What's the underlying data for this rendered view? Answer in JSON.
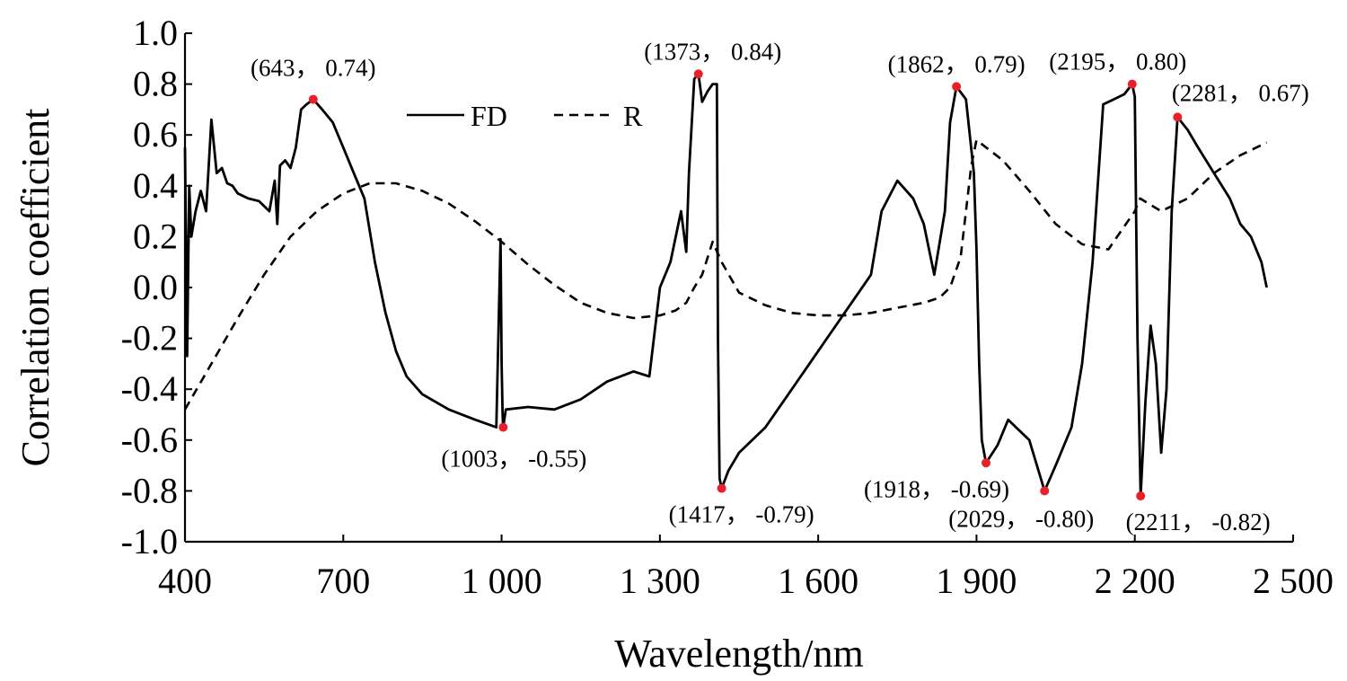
{
  "chart_data": {
    "type": "line",
    "xlabel": "Wavelength/nm",
    "ylabel": "Correlation coefficient",
    "xlim": [
      400,
      2500
    ],
    "ylim": [
      -1.0,
      1.0
    ],
    "x_ticks": [
      400,
      700,
      1000,
      1300,
      1600,
      1900,
      2200,
      2500
    ],
    "x_tick_labels": [
      "400",
      "700",
      "1 000",
      "1 300",
      "1 600",
      "1 900",
      "2 200",
      "2 500"
    ],
    "y_ticks": [
      1.0,
      0.8,
      0.6,
      0.4,
      0.2,
      0.0,
      -0.2,
      -0.4,
      -0.6,
      -0.8,
      -1.0
    ],
    "y_tick_labels": [
      "1.0",
      "0.8",
      "0.6",
      "0.4",
      "0.2",
      "0.0",
      "-0.2",
      "-0.4",
      "-0.6",
      "-0.8",
      "-1.0"
    ],
    "grid": false,
    "legend_position": "top-center",
    "series": [
      {
        "name": "FD",
        "style": "solid",
        "color": "#000000",
        "x": [
          400,
          404,
          408,
          412,
          420,
          430,
          440,
          450,
          460,
          470,
          480,
          490,
          500,
          520,
          540,
          560,
          570,
          575,
          580,
          590,
          600,
          610,
          620,
          630,
          643,
          660,
          680,
          700,
          720,
          740,
          760,
          780,
          800,
          820,
          850,
          900,
          950,
          990,
          998,
          1000,
          1002,
          1003,
          1008,
          1050,
          1100,
          1150,
          1200,
          1250,
          1280,
          1300,
          1320,
          1340,
          1350,
          1355,
          1365,
          1373,
          1380,
          1390,
          1400,
          1408,
          1410,
          1413,
          1417,
          1430,
          1450,
          1500,
          1550,
          1600,
          1650,
          1700,
          1720,
          1750,
          1780,
          1800,
          1820,
          1840,
          1850,
          1862,
          1880,
          1895,
          1900,
          1905,
          1910,
          1918,
          1940,
          1960,
          2000,
          2029,
          2050,
          2080,
          2100,
          2120,
          2140,
          2160,
          2180,
          2195,
          2200,
          2205,
          2211,
          2220,
          2230,
          2240,
          2250,
          2260,
          2270,
          2281,
          2300,
          2320,
          2350,
          2380,
          2400,
          2420,
          2440,
          2450
        ],
        "values": [
          0.55,
          -0.27,
          0.4,
          0.2,
          0.3,
          0.38,
          0.3,
          0.66,
          0.45,
          0.47,
          0.41,
          0.4,
          0.37,
          0.35,
          0.34,
          0.3,
          0.42,
          0.25,
          0.48,
          0.5,
          0.47,
          0.55,
          0.7,
          0.72,
          0.74,
          0.7,
          0.65,
          0.55,
          0.45,
          0.35,
          0.1,
          -0.1,
          -0.25,
          -0.35,
          -0.42,
          -0.48,
          -0.52,
          -0.55,
          0.19,
          -0.3,
          -0.5,
          -0.55,
          -0.48,
          -0.47,
          -0.48,
          -0.44,
          -0.37,
          -0.33,
          -0.35,
          0.0,
          0.1,
          0.3,
          0.14,
          0.45,
          0.82,
          0.84,
          0.73,
          0.77,
          0.8,
          0.8,
          -0.2,
          -0.75,
          -0.79,
          -0.72,
          -0.65,
          -0.55,
          -0.4,
          -0.25,
          -0.1,
          0.05,
          0.3,
          0.42,
          0.35,
          0.25,
          0.05,
          0.3,
          0.65,
          0.79,
          0.74,
          0.45,
          0.15,
          -0.3,
          -0.6,
          -0.69,
          -0.62,
          -0.52,
          -0.6,
          -0.8,
          -0.7,
          -0.55,
          -0.3,
          0.1,
          0.72,
          0.74,
          0.76,
          0.8,
          0.75,
          -0.2,
          -0.82,
          -0.45,
          -0.15,
          -0.3,
          -0.65,
          -0.4,
          0.3,
          0.67,
          0.62,
          0.55,
          0.45,
          0.35,
          0.25,
          0.2,
          0.1,
          0.0
        ]
      },
      {
        "name": "R",
        "style": "dashed",
        "color": "#000000",
        "x": [
          400,
          450,
          500,
          550,
          600,
          650,
          700,
          750,
          800,
          850,
          900,
          950,
          1000,
          1050,
          1100,
          1150,
          1200,
          1250,
          1300,
          1330,
          1350,
          1365,
          1380,
          1400,
          1417,
          1450,
          1500,
          1550,
          1600,
          1650,
          1700,
          1750,
          1800,
          1830,
          1850,
          1870,
          1880,
          1890,
          1900,
          1950,
          2000,
          2050,
          2100,
          2150,
          2200,
          2210,
          2250,
          2300,
          2350,
          2400,
          2450
        ],
        "values": [
          -0.48,
          -0.3,
          -0.12,
          0.05,
          0.2,
          0.3,
          0.37,
          0.41,
          0.41,
          0.38,
          0.33,
          0.26,
          0.18,
          0.09,
          0.01,
          -0.06,
          -0.1,
          -0.12,
          -0.11,
          -0.09,
          -0.06,
          0.0,
          0.05,
          0.18,
          0.1,
          -0.02,
          -0.07,
          -0.1,
          -0.11,
          -0.11,
          -0.1,
          -0.08,
          -0.06,
          -0.04,
          0.0,
          0.12,
          0.3,
          0.48,
          0.58,
          0.5,
          0.38,
          0.25,
          0.17,
          0.15,
          0.3,
          0.35,
          0.3,
          0.35,
          0.45,
          0.52,
          0.57
        ]
      }
    ],
    "annotations": [
      {
        "x": 643,
        "y": 0.74,
        "label": "(643， 0.74)",
        "color": "#e8202a"
      },
      {
        "x": 1003,
        "y": -0.55,
        "label": "(1003， -0.55)",
        "color": "#e8202a"
      },
      {
        "x": 1373,
        "y": 0.84,
        "label": "(1373， 0.84)",
        "color": "#e8202a"
      },
      {
        "x": 1417,
        "y": -0.79,
        "label": "(1417， -0.79)",
        "color": "#e8202a"
      },
      {
        "x": 1862,
        "y": 0.79,
        "label": "(1862， 0.79)",
        "color": "#e8202a"
      },
      {
        "x": 1918,
        "y": -0.69,
        "label": "(1918， -0.69)",
        "color": "#e8202a"
      },
      {
        "x": 2029,
        "y": -0.8,
        "label": "(2029， -0.80)",
        "color": "#e8202a"
      },
      {
        "x": 2195,
        "y": 0.8,
        "label": "(2195， 0.80)",
        "color": "#e8202a"
      },
      {
        "x": 2211,
        "y": -0.82,
        "label": "(2211， -0.82)",
        "color": "#e8202a"
      },
      {
        "x": 2281,
        "y": 0.67,
        "label": "(2281， 0.67)",
        "color": "#e8202a"
      }
    ]
  }
}
